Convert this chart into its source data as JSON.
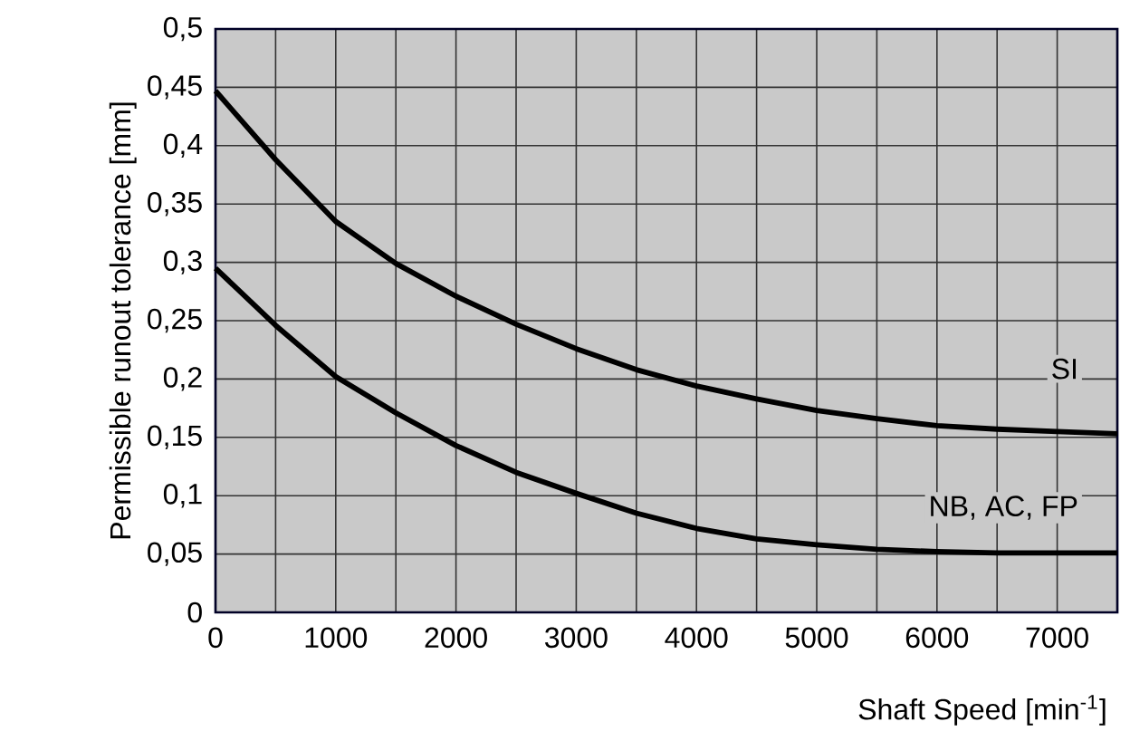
{
  "chart_data": {
    "type": "line",
    "xlabel": "Shaft Speed [min$^{-1}$]",
    "ylabel": "Permissible runout tolerance [mm]",
    "x": [
      0,
      500,
      1000,
      1500,
      2000,
      2500,
      3000,
      3500,
      4000,
      4500,
      5000,
      5500,
      6000,
      6500,
      7000,
      7500
    ],
    "series": [
      {
        "name": "SI",
        "color": "#000000",
        "values": [
          0.447,
          0.388,
          0.335,
          0.299,
          0.271,
          0.247,
          0.226,
          0.208,
          0.194,
          0.183,
          0.173,
          0.166,
          0.16,
          0.157,
          0.155,
          0.153
        ]
      },
      {
        "name": "NB, AC, FP",
        "color": "#000000",
        "values": [
          0.295,
          0.246,
          0.202,
          0.171,
          0.143,
          0.12,
          0.102,
          0.085,
          0.072,
          0.063,
          0.058,
          0.054,
          0.052,
          0.051,
          0.051,
          0.051
        ]
      }
    ],
    "xlim": [
      0,
      7500
    ],
    "ylim": [
      0,
      0.5
    ],
    "xticks": [
      0,
      {
        "value": 500,
        "label": null
      },
      1000,
      {
        "value": 1500,
        "label": null
      },
      2000,
      {
        "value": 2500,
        "label": null
      },
      3000,
      {
        "value": 3500,
        "label": null
      },
      4000,
      {
        "value": 4500,
        "label": null
      },
      5000,
      {
        "value": 5500,
        "label": null
      },
      6000,
      {
        "value": 6500,
        "label": null
      },
      7000
    ],
    "yticks": [
      0,
      {
        "value": 0.05,
        "label": "0,05"
      },
      {
        "value": 0.1,
        "label": "0,1"
      },
      {
        "value": 0.15,
        "label": "0,15"
      },
      {
        "value": 0.2,
        "label": "0,2"
      },
      {
        "value": 0.25,
        "label": "0,25"
      },
      {
        "value": 0.3,
        "label": "0,3"
      },
      {
        "value": 0.35,
        "label": "0,35"
      },
      {
        "value": 0.4,
        "label": "0,4"
      },
      {
        "value": 0.45,
        "label": "0,45"
      },
      {
        "value": 0.5,
        "label": "0,5"
      }
    ],
    "grid": true
  }
}
